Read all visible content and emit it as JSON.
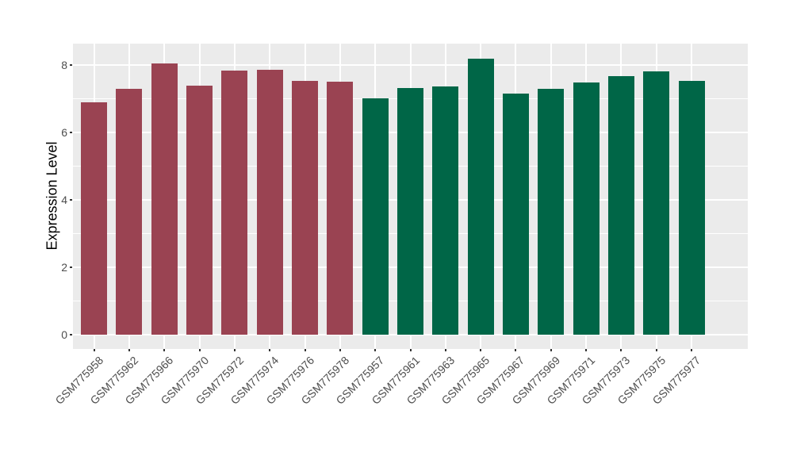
{
  "colors": {
    "red_group": "#9a4352",
    "green_group": "#006647",
    "panel_bg": "#ebebeb",
    "gridline": "#ffffff",
    "tick_mark": "#333333",
    "tick_text": "#4d4d4d",
    "axis_title_text": "#000000",
    "page_bg": "#ffffff"
  },
  "chart_data": {
    "type": "bar",
    "title": "",
    "xlabel": "",
    "ylabel": "Expression Level",
    "ylim": [
      0,
      8.64
    ],
    "yticks": [
      0,
      2,
      4,
      6,
      8
    ],
    "yminor_ticks": [
      1,
      3,
      5,
      7
    ],
    "grid": "on",
    "legend": "none",
    "categories": [
      "GSM775958",
      "GSM775962",
      "GSM775966",
      "GSM775970",
      "GSM775972",
      "GSM775974",
      "GSM775976",
      "GSM775978",
      "GSM775957",
      "GSM775961",
      "GSM775963",
      "GSM775965",
      "GSM775967",
      "GSM775969",
      "GSM775971",
      "GSM775973",
      "GSM775975",
      "GSM775977"
    ],
    "values": [
      6.9,
      7.3,
      8.05,
      7.4,
      7.84,
      7.86,
      7.53,
      7.5,
      7.01,
      7.32,
      7.36,
      8.2,
      7.15,
      7.29,
      7.48,
      7.67,
      7.81,
      7.53
    ],
    "bar_groups": [
      0,
      0,
      0,
      0,
      0,
      0,
      0,
      0,
      1,
      1,
      1,
      1,
      1,
      1,
      1,
      1,
      1,
      1
    ],
    "group_color_keys": [
      "red_group",
      "green_group"
    ]
  }
}
